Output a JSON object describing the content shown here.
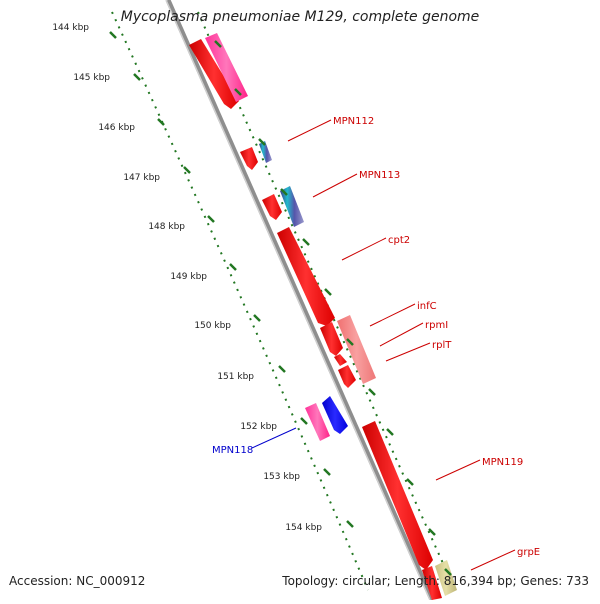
{
  "title": "Mycoplasma pneumoniae M129, complete genome",
  "footer": {
    "accession": "Accession: NC_000912",
    "topology": "Topology: circular; Length: 816,394 bp; Genes: 733"
  },
  "colors": {
    "gene_red": "#ee1111",
    "gene_magenta": "#ff3399",
    "gene_blue": "#1111ee",
    "gene_pink": "#f08080",
    "label_red": "#cc0000",
    "label_blue": "#0000cc",
    "tick_green": "#227722",
    "backbone": "#9a9a9a"
  },
  "ruler": {
    "unit": "kbp",
    "ticks": [
      "144 kbp",
      "145 kbp",
      "146 kbp",
      "147 kbp",
      "148 kbp",
      "149 kbp",
      "150 kbp",
      "151 kbp",
      "152 kbp",
      "153 kbp",
      "154 kbp"
    ]
  },
  "gene_labels": [
    {
      "text": "MPN112",
      "strand": "forward"
    },
    {
      "text": "MPN113",
      "strand": "forward"
    },
    {
      "text": "cpt2",
      "strand": "forward"
    },
    {
      "text": "infC",
      "strand": "forward"
    },
    {
      "text": "rpmI",
      "strand": "forward"
    },
    {
      "text": "rplT",
      "strand": "forward"
    },
    {
      "text": "MPN118",
      "strand": "reverse"
    },
    {
      "text": "MPN119",
      "strand": "forward"
    },
    {
      "text": "grpE",
      "strand": "forward"
    }
  ]
}
